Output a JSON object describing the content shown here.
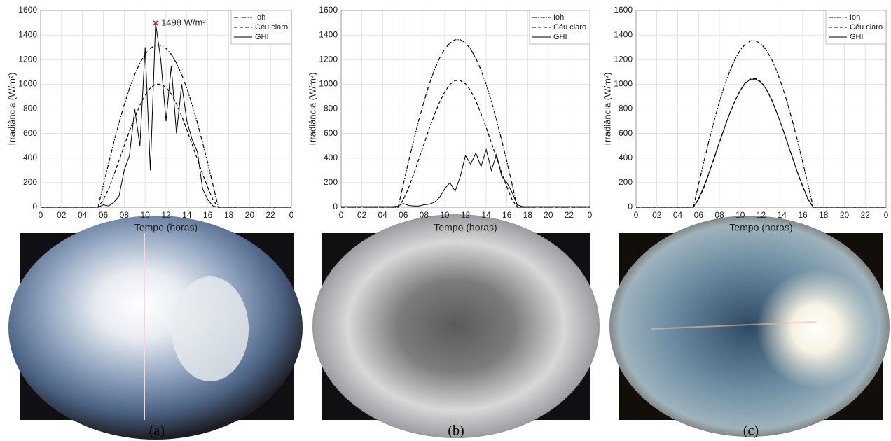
{
  "chart_data": [
    {
      "type": "line",
      "caption": "(a)",
      "xlabel": "Tempo (horas)",
      "ylabel": "Irradiância (W/m²)",
      "x": [
        0,
        0.5,
        1,
        1.5,
        2,
        2.5,
        3,
        3.5,
        4,
        4.5,
        5,
        5.5,
        6,
        6.5,
        7,
        7.5,
        8,
        8.5,
        9,
        9.5,
        10,
        10.5,
        11,
        11.5,
        12,
        12.5,
        13,
        13.5,
        14,
        14.5,
        15,
        15.5,
        16,
        16.5,
        17,
        17.5,
        18,
        18.5,
        19,
        19.5,
        20,
        20.5,
        21,
        21.5,
        22,
        22.5,
        23,
        23.5,
        24
      ],
      "xlim": [
        0,
        24
      ],
      "ylim": [
        0,
        1600
      ],
      "xticks": [
        0,
        {
          "value": 2,
          "label": "02"
        },
        {
          "value": 4,
          "label": "04"
        },
        {
          "value": 6,
          "label": "06"
        },
        {
          "value": 8,
          "label": "08"
        },
        10,
        12,
        14,
        16,
        18,
        20,
        22,
        {
          "value": 24,
          "label": "0"
        }
      ],
      "yticks": [
        0,
        200,
        400,
        600,
        800,
        1000,
        1200,
        1400,
        1600
      ],
      "grid": true,
      "legend": "upper right",
      "series": [
        {
          "name": "Ioh",
          "color": "#000000",
          "dash": "dashdot",
          "values": [
            0,
            0,
            0,
            0,
            0,
            0,
            0,
            0,
            0,
            0,
            0,
            0,
            180,
            356,
            526,
            686,
            833,
            965,
            1079,
            1172,
            1244,
            1292,
            1317,
            1317,
            1292,
            1243,
            1172,
            1079,
            965,
            833,
            686,
            526,
            356,
            180,
            0,
            0,
            0,
            0,
            0,
            0,
            0,
            0,
            0,
            0,
            0,
            0,
            0,
            0,
            0
          ]
        },
        {
          "name": "Céu claro",
          "color": "#000000",
          "dash": "dashed",
          "values": [
            0,
            0,
            0,
            0,
            0,
            0,
            0,
            0,
            0,
            0,
            0,
            0,
            60,
            150,
            260,
            380,
            500,
            620,
            730,
            830,
            910,
            970,
            1000,
            1000,
            975,
            920,
            840,
            740,
            630,
            510,
            390,
            270,
            160,
            60,
            0,
            0,
            0,
            0,
            0,
            0,
            0,
            0,
            0,
            0,
            0,
            0,
            0,
            0,
            0
          ]
        },
        {
          "name": "GHI",
          "color": "#000000",
          "dash": "solid",
          "values": [
            0,
            0,
            0,
            0,
            0,
            0,
            0,
            0,
            0,
            0,
            0,
            0,
            20,
            10,
            40,
            90,
            300,
            420,
            800,
            500,
            1300,
            300,
            1498,
            1200,
            700,
            1150,
            600,
            1000,
            700,
            550,
            450,
            150,
            60,
            10,
            0,
            0,
            0,
            0,
            0,
            0,
            0,
            0,
            0,
            0,
            0,
            0,
            0,
            0,
            0
          ]
        }
      ],
      "annotation": {
        "text": "1498 W/m²",
        "x": 11,
        "y": 1498,
        "color": "#d62728"
      }
    },
    {
      "type": "line",
      "caption": "(b)",
      "xlabel": "Tempo (horas)",
      "ylabel": "Irradiância (W/m²)",
      "x": [
        0,
        0.5,
        1,
        1.5,
        2,
        2.5,
        3,
        3.5,
        4,
        4.5,
        5,
        5.5,
        6,
        6.5,
        7,
        7.5,
        8,
        8.5,
        9,
        9.5,
        10,
        10.5,
        11,
        11.5,
        12,
        12.5,
        13,
        13.5,
        14,
        14.5,
        15,
        15.5,
        16,
        16.5,
        17,
        17.5,
        18,
        18.5,
        19,
        19.5,
        20,
        20.5,
        21,
        21.5,
        22,
        22.5,
        23,
        23.5,
        24
      ],
      "xlim": [
        0,
        24
      ],
      "ylim": [
        0,
        1600
      ],
      "xticks": [
        0,
        {
          "value": 2,
          "label": "02"
        },
        {
          "value": 4,
          "label": "04"
        },
        {
          "value": 6,
          "label": "06"
        },
        {
          "value": 8,
          "label": "08"
        },
        10,
        12,
        14,
        16,
        18,
        20,
        22,
        {
          "value": 24,
          "label": "0"
        }
      ],
      "yticks": [
        0,
        200,
        400,
        600,
        800,
        1000,
        1200,
        1400,
        1600
      ],
      "grid": true,
      "legend": "upper right",
      "series": [
        {
          "name": "Ioh",
          "color": "#000000",
          "dash": "dashdot",
          "values": [
            0,
            0,
            0,
            0,
            0,
            0,
            0,
            0,
            0,
            0,
            0,
            0,
            186,
            368,
            544,
            709,
            861,
            998,
            1116,
            1212,
            1286,
            1336,
            1362,
            1362,
            1336,
            1285,
            1212,
            1116,
            998,
            861,
            709,
            544,
            368,
            186,
            0,
            0,
            0,
            0,
            0,
            0,
            0,
            0,
            0,
            0,
            0,
            0,
            0,
            0,
            0
          ]
        },
        {
          "name": "Céu claro",
          "color": "#000000",
          "dash": "dashed",
          "values": [
            0,
            0,
            0,
            0,
            0,
            0,
            0,
            0,
            0,
            0,
            0,
            0,
            62,
            155,
            268,
            391,
            515,
            639,
            752,
            855,
            937,
            999,
            1030,
            1030,
            1004,
            948,
            865,
            762,
            649,
            525,
            402,
            278,
            165,
            62,
            0,
            0,
            0,
            0,
            0,
            0,
            0,
            0,
            0,
            0,
            0,
            0,
            0,
            0,
            0
          ]
        },
        {
          "name": "GHI",
          "color": "#000000",
          "dash": "solid",
          "values": [
            5,
            5,
            5,
            5,
            5,
            5,
            5,
            5,
            5,
            5,
            5,
            10,
            30,
            15,
            10,
            10,
            20,
            25,
            40,
            80,
            150,
            200,
            130,
            250,
            420,
            350,
            440,
            330,
            470,
            300,
            430,
            250,
            200,
            120,
            20,
            5,
            5,
            5,
            5,
            5,
            5,
            5,
            5,
            5,
            5,
            5,
            5,
            5,
            5
          ]
        }
      ]
    },
    {
      "type": "line",
      "caption": "(c)",
      "xlabel": "Tempo (horas)",
      "ylabel": "Irradiância (W/m²)",
      "x": [
        0,
        0.5,
        1,
        1.5,
        2,
        2.5,
        3,
        3.5,
        4,
        4.5,
        5,
        5.5,
        6,
        6.5,
        7,
        7.5,
        8,
        8.5,
        9,
        9.5,
        10,
        10.5,
        11,
        11.5,
        12,
        12.5,
        13,
        13.5,
        14,
        14.5,
        15,
        15.5,
        16,
        16.5,
        17,
        17.5,
        18,
        18.5,
        19,
        19.5,
        20,
        20.5,
        21,
        21.5,
        22,
        22.5,
        23,
        23.5,
        24
      ],
      "xlim": [
        0,
        24
      ],
      "ylim": [
        0,
        1600
      ],
      "xticks": [
        0,
        {
          "value": 2,
          "label": "02"
        },
        {
          "value": 4,
          "label": "04"
        },
        {
          "value": 6,
          "label": "06"
        },
        {
          "value": 8,
          "label": "08"
        },
        10,
        12,
        14,
        16,
        18,
        20,
        22,
        {
          "value": 24,
          "label": "0"
        }
      ],
      "yticks": [
        0,
        200,
        400,
        600,
        800,
        1000,
        1200,
        1400,
        1600
      ],
      "grid": true,
      "legend": "upper right",
      "series": [
        {
          "name": "Ioh",
          "color": "#000000",
          "dash": "dashdot",
          "values": [
            0,
            0,
            0,
            0,
            0,
            0,
            0,
            0,
            0,
            0,
            0,
            0,
            185,
            366,
            540,
            705,
            855,
            991,
            1108,
            1204,
            1278,
            1327,
            1353,
            1353,
            1327,
            1277,
            1204,
            1108,
            991,
            855,
            705,
            540,
            366,
            185,
            0,
            0,
            0,
            0,
            0,
            0,
            0,
            0,
            0,
            0,
            0,
            0,
            0,
            0,
            0
          ]
        },
        {
          "name": "Céu claro",
          "color": "#000000",
          "dash": "dashed",
          "values": [
            0,
            0,
            0,
            0,
            0,
            0,
            0,
            0,
            0,
            0,
            0,
            0,
            63,
            157,
            272,
            397,
            523,
            648,
            763,
            867,
            951,
            1014,
            1045,
            1045,
            1019,
            961,
            878,
            773,
            658,
            533,
            408,
            282,
            167,
            63,
            0,
            0,
            0,
            0,
            0,
            0,
            0,
            0,
            0,
            0,
            0,
            0,
            0,
            0,
            0
          ]
        },
        {
          "name": "GHI",
          "color": "#000000",
          "dash": "solid",
          "values": [
            0,
            0,
            0,
            0,
            0,
            0,
            0,
            0,
            0,
            0,
            0,
            0,
            70,
            165,
            280,
            405,
            530,
            650,
            765,
            865,
            948,
            1010,
            1040,
            1040,
            1015,
            958,
            875,
            770,
            655,
            530,
            405,
            280,
            170,
            70,
            0,
            0,
            0,
            0,
            0,
            0,
            0,
            0,
            0,
            0,
            0,
            0,
            0,
            0,
            0
          ]
        }
      ]
    }
  ]
}
